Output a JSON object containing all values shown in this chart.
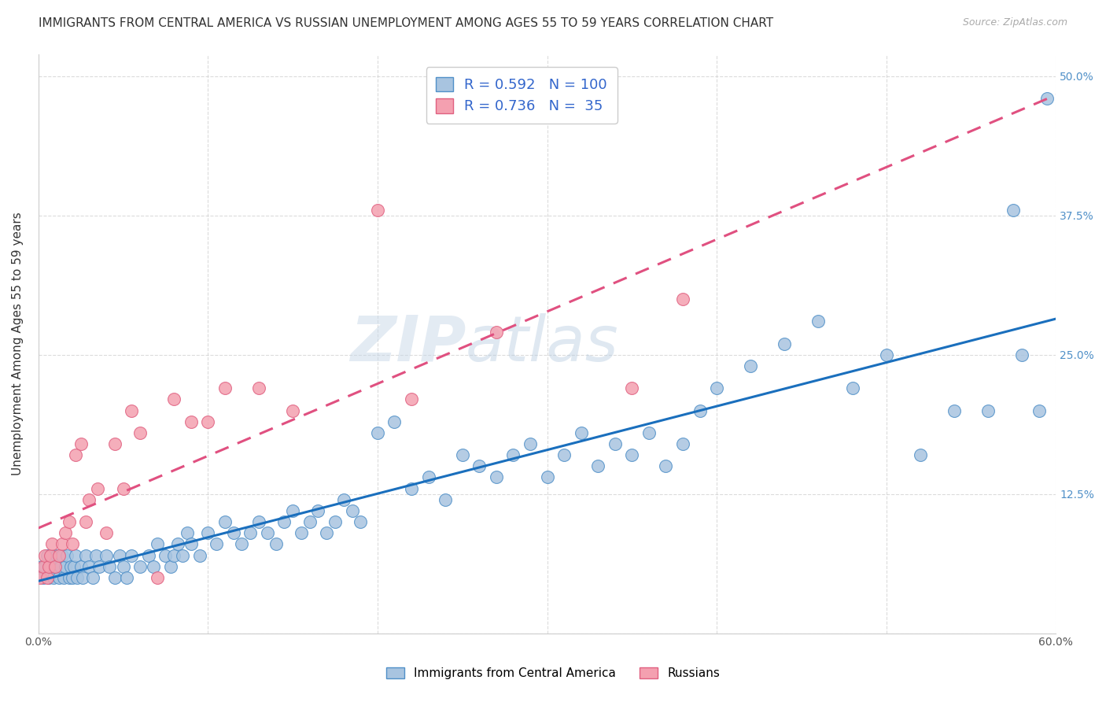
{
  "title": "IMMIGRANTS FROM CENTRAL AMERICA VS RUSSIAN UNEMPLOYMENT AMONG AGES 55 TO 59 YEARS CORRELATION CHART",
  "source": "Source: ZipAtlas.com",
  "ylabel": "Unemployment Among Ages 55 to 59 years",
  "xlim": [
    0.0,
    0.6
  ],
  "ylim": [
    0.0,
    0.52
  ],
  "xticks": [
    0.0,
    0.1,
    0.2,
    0.3,
    0.4,
    0.5,
    0.6
  ],
  "xticklabels": [
    "0.0%",
    "",
    "",
    "",
    "",
    "",
    "60.0%"
  ],
  "yticks": [
    0.0,
    0.125,
    0.25,
    0.375,
    0.5
  ],
  "yticklabels": [
    "",
    "12.5%",
    "25.0%",
    "37.5%",
    "50.0%"
  ],
  "blue_R": 0.592,
  "blue_N": 100,
  "pink_R": 0.736,
  "pink_N": 35,
  "blue_color": "#a8c4e0",
  "pink_color": "#f4a0b0",
  "blue_line_color": "#1a6fbd",
  "pink_line_color": "#e05080",
  "blue_scatter_edge": "#5090c8",
  "pink_scatter_edge": "#e06080",
  "watermark_zip": "ZIP",
  "watermark_atlas": "atlas",
  "legend_label_blue": "Immigrants from Central America",
  "legend_label_pink": "Russians",
  "blue_points_x": [
    0.002,
    0.003,
    0.004,
    0.005,
    0.006,
    0.007,
    0.008,
    0.009,
    0.01,
    0.011,
    0.012,
    0.013,
    0.014,
    0.015,
    0.016,
    0.017,
    0.018,
    0.019,
    0.02,
    0.021,
    0.022,
    0.023,
    0.025,
    0.026,
    0.028,
    0.03,
    0.032,
    0.034,
    0.036,
    0.04,
    0.042,
    0.045,
    0.048,
    0.05,
    0.052,
    0.055,
    0.06,
    0.065,
    0.068,
    0.07,
    0.075,
    0.078,
    0.08,
    0.082,
    0.085,
    0.088,
    0.09,
    0.095,
    0.1,
    0.105,
    0.11,
    0.115,
    0.12,
    0.125,
    0.13,
    0.135,
    0.14,
    0.145,
    0.15,
    0.155,
    0.16,
    0.165,
    0.17,
    0.175,
    0.18,
    0.185,
    0.19,
    0.2,
    0.21,
    0.22,
    0.23,
    0.24,
    0.25,
    0.26,
    0.27,
    0.28,
    0.29,
    0.3,
    0.31,
    0.32,
    0.33,
    0.34,
    0.35,
    0.36,
    0.37,
    0.38,
    0.39,
    0.4,
    0.42,
    0.44,
    0.46,
    0.48,
    0.5,
    0.52,
    0.54,
    0.56,
    0.575,
    0.58,
    0.59,
    0.595
  ],
  "blue_points_y": [
    0.06,
    0.05,
    0.06,
    0.07,
    0.05,
    0.06,
    0.07,
    0.05,
    0.06,
    0.07,
    0.05,
    0.06,
    0.07,
    0.05,
    0.06,
    0.07,
    0.05,
    0.06,
    0.05,
    0.06,
    0.07,
    0.05,
    0.06,
    0.05,
    0.07,
    0.06,
    0.05,
    0.07,
    0.06,
    0.07,
    0.06,
    0.05,
    0.07,
    0.06,
    0.05,
    0.07,
    0.06,
    0.07,
    0.06,
    0.08,
    0.07,
    0.06,
    0.07,
    0.08,
    0.07,
    0.09,
    0.08,
    0.07,
    0.09,
    0.08,
    0.1,
    0.09,
    0.08,
    0.09,
    0.1,
    0.09,
    0.08,
    0.1,
    0.11,
    0.09,
    0.1,
    0.11,
    0.09,
    0.1,
    0.12,
    0.11,
    0.1,
    0.18,
    0.19,
    0.13,
    0.14,
    0.12,
    0.16,
    0.15,
    0.14,
    0.16,
    0.17,
    0.14,
    0.16,
    0.18,
    0.15,
    0.17,
    0.16,
    0.18,
    0.15,
    0.17,
    0.2,
    0.22,
    0.24,
    0.26,
    0.28,
    0.22,
    0.25,
    0.16,
    0.2,
    0.2,
    0.38,
    0.25,
    0.2,
    0.48
  ],
  "pink_points_x": [
    0.001,
    0.003,
    0.004,
    0.005,
    0.006,
    0.007,
    0.008,
    0.01,
    0.012,
    0.014,
    0.016,
    0.018,
    0.02,
    0.022,
    0.025,
    0.028,
    0.03,
    0.035,
    0.04,
    0.045,
    0.05,
    0.055,
    0.06,
    0.07,
    0.08,
    0.09,
    0.1,
    0.11,
    0.13,
    0.15,
    0.2,
    0.22,
    0.27,
    0.35,
    0.38
  ],
  "pink_points_y": [
    0.05,
    0.06,
    0.07,
    0.05,
    0.06,
    0.07,
    0.08,
    0.06,
    0.07,
    0.08,
    0.09,
    0.1,
    0.08,
    0.16,
    0.17,
    0.1,
    0.12,
    0.13,
    0.09,
    0.17,
    0.13,
    0.2,
    0.18,
    0.05,
    0.21,
    0.19,
    0.19,
    0.22,
    0.22,
    0.2,
    0.38,
    0.21,
    0.27,
    0.22,
    0.3
  ]
}
